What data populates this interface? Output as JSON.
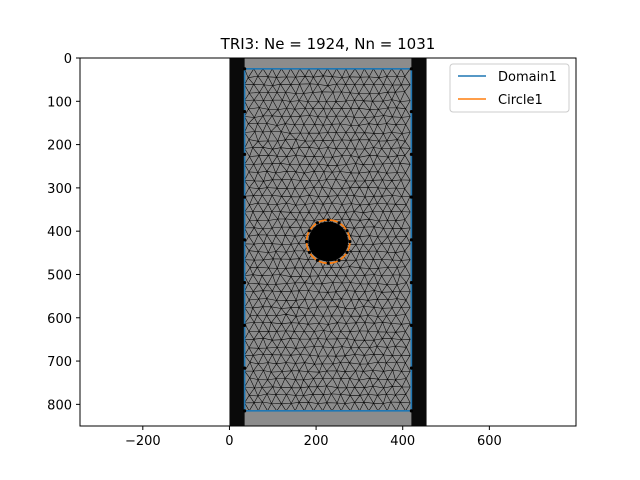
{
  "chart_data": {
    "type": "mesh-plot",
    "title": "TRI3: Ne = 1924, Nn = 1031",
    "xlim": [
      -345,
      800
    ],
    "ylim": [
      850,
      0
    ],
    "y_inverted": true,
    "x_ticks": [
      -200,
      0,
      200,
      400,
      600
    ],
    "x_tick_labels": [
      "−200",
      "0",
      "200",
      "400",
      "600"
    ],
    "y_ticks": [
      0,
      100,
      200,
      300,
      400,
      500,
      600,
      700,
      800
    ],
    "y_tick_labels": [
      "0",
      "100",
      "200",
      "300",
      "400",
      "500",
      "600",
      "700",
      "800"
    ],
    "background_image": {
      "extent_x": [
        0,
        455
      ],
      "extent_y": [
        0,
        850
      ],
      "specimen_x": [
        35,
        420
      ]
    },
    "legend_position": "top-right",
    "series": [
      {
        "name": "Domain1",
        "color": "#1f77b4",
        "type": "rectangle",
        "x": [
          35,
          420,
          420,
          35,
          35
        ],
        "y": [
          25,
          25,
          815,
          815,
          25
        ]
      },
      {
        "name": "Circle1",
        "color": "#ff7f0e",
        "type": "circle",
        "center": [
          228,
          424
        ],
        "radius": 50
      }
    ],
    "mesh": {
      "elements": 1924,
      "nodes": 1031,
      "color": "#000000"
    }
  }
}
